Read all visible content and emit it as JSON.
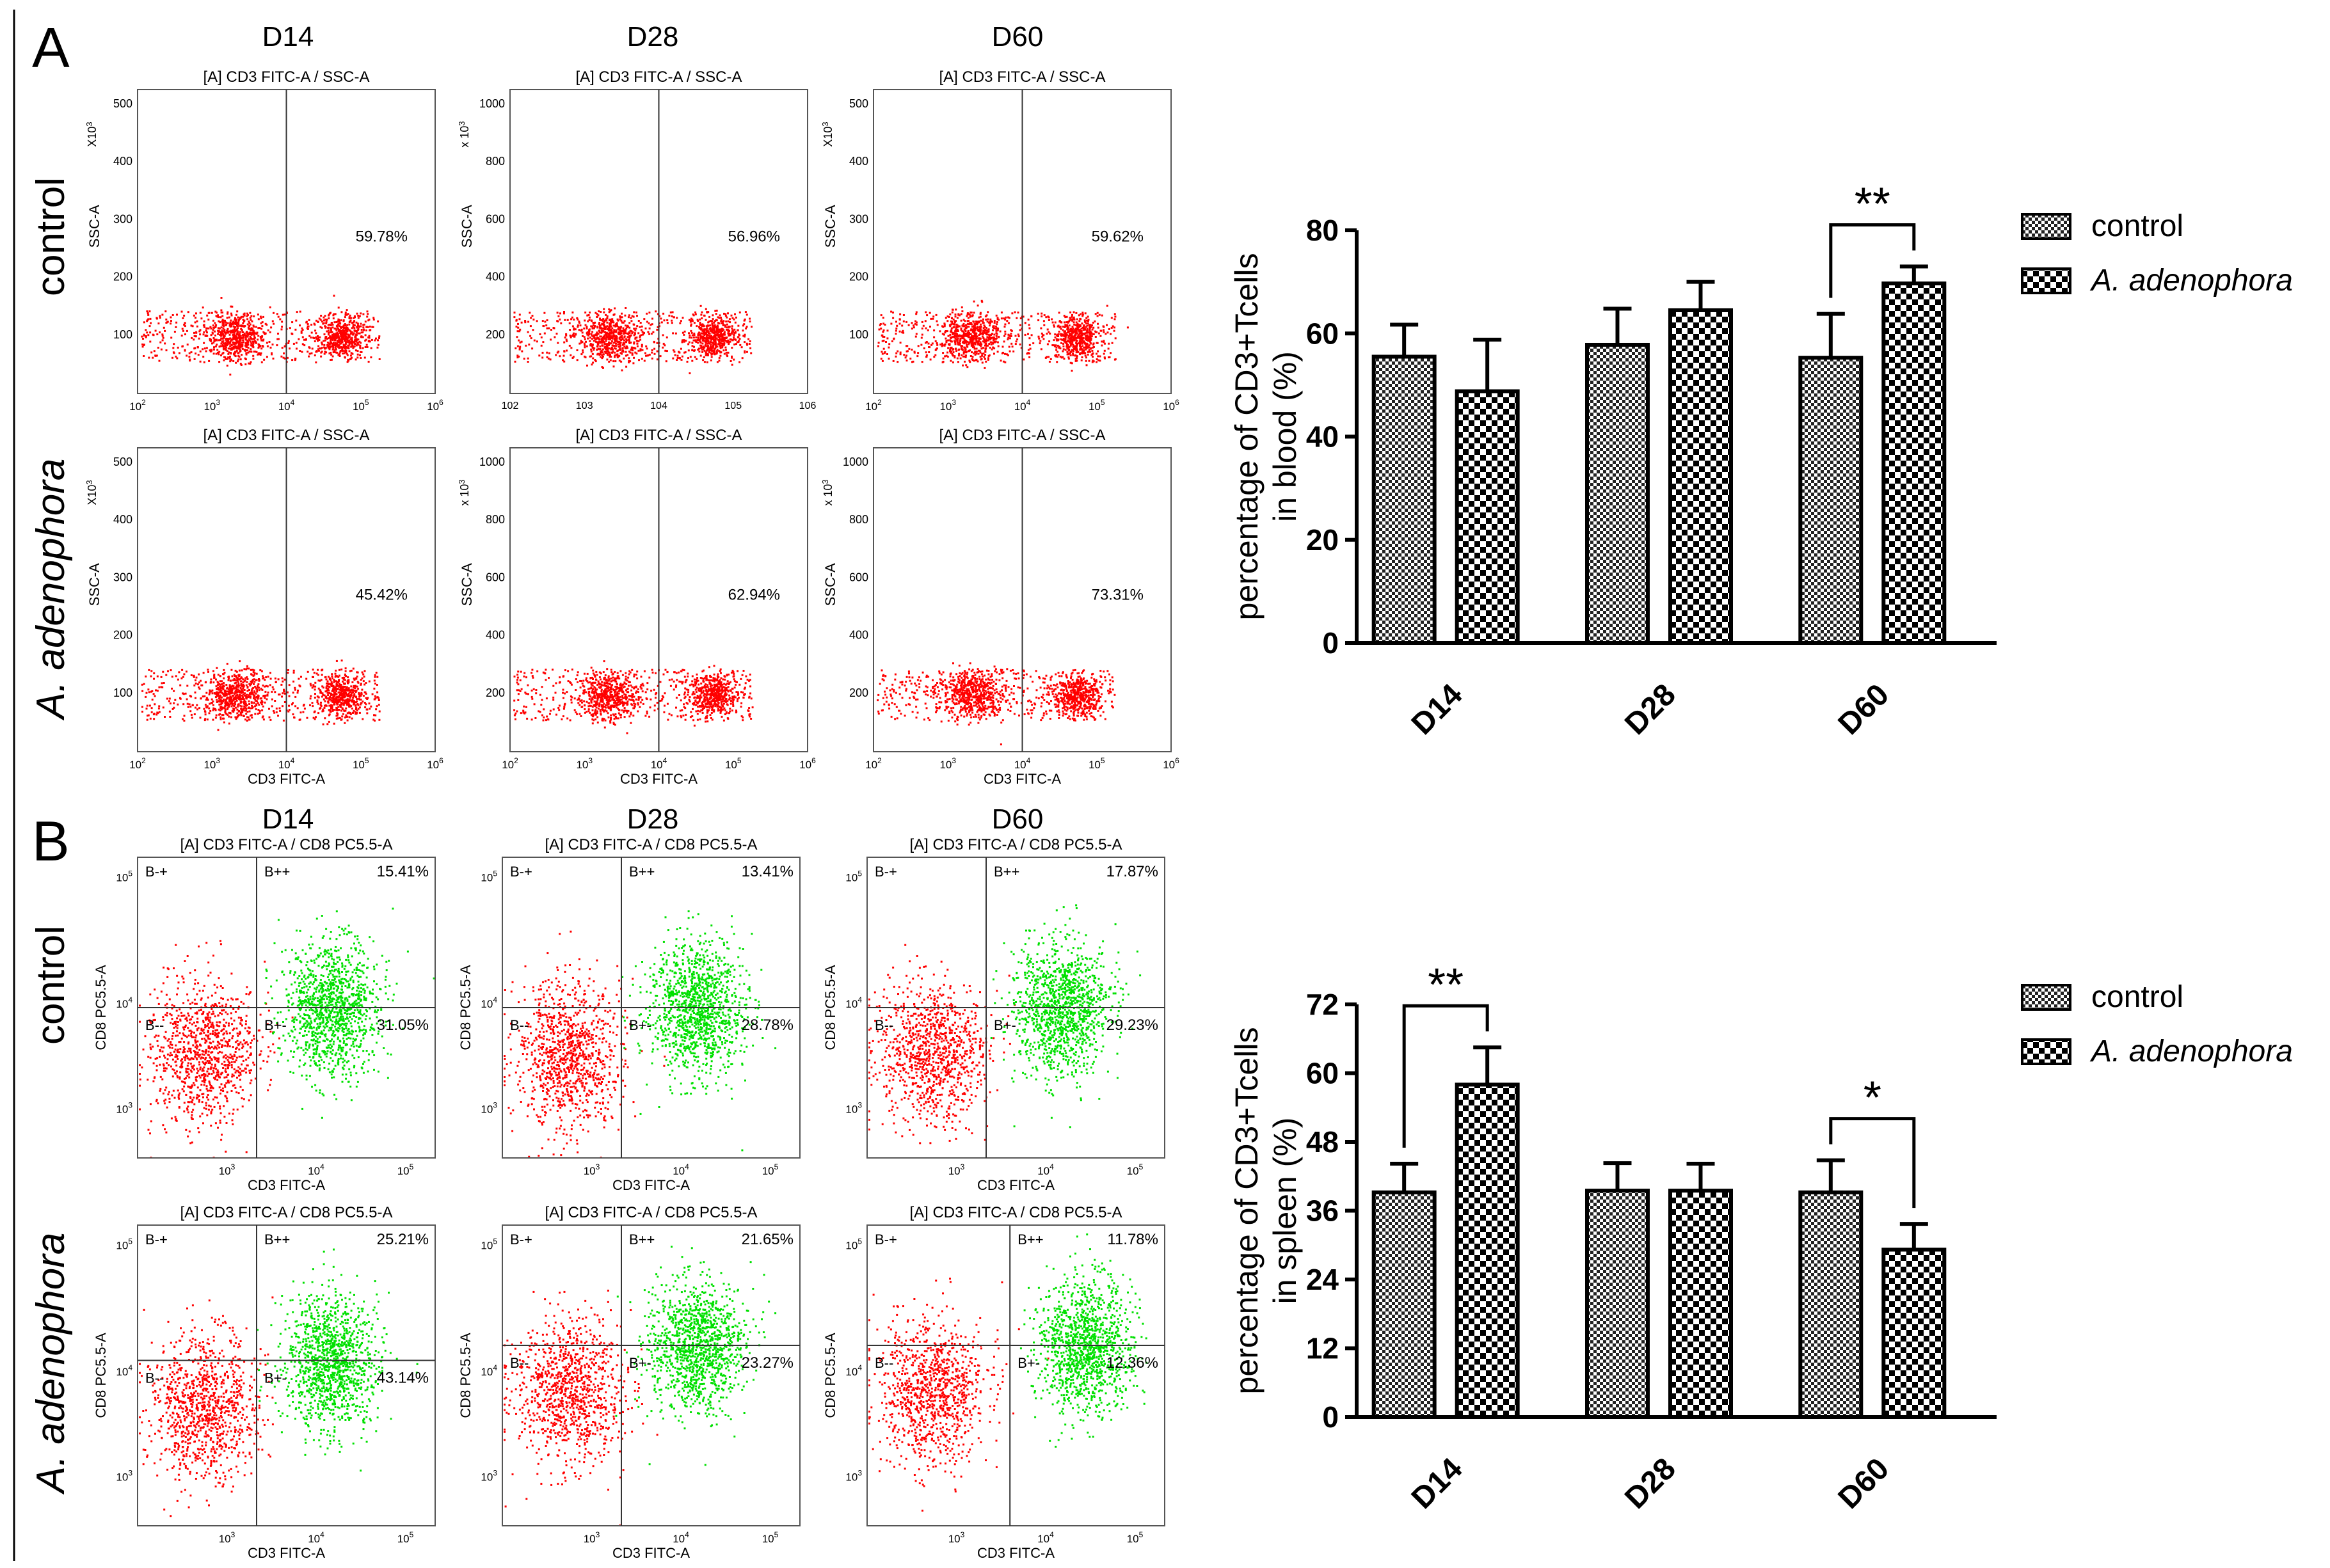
{
  "panels": {
    "A": {
      "letter": "A",
      "columns": [
        "D14",
        "D28",
        "D60"
      ],
      "rows": [
        "control",
        "A. adenophora"
      ],
      "plot_titles": [
        "[A] CD3 FITC-A / SSC-A",
        "[A] CD3 FITC-A / SSC-A",
        "[A] CD3 FITC-A / SSC-A",
        "[A] CD3 FITC-A / SSC-A",
        "[A] CD3 FITC-A / SSC-A",
        "[A] CD3 FITC-A / SSC-A"
      ],
      "percentages": [
        "59.78%",
        "56.96%",
        "59.62%",
        "45.42%",
        "62.94%",
        "73.31%"
      ],
      "ylabel": "SSC-A",
      "xlabel": "CD3 FITC-A",
      "mult": [
        "X10",
        "3",
        "x 10",
        "3"
      ],
      "yticks_small": [
        "500",
        "400",
        "300",
        "200",
        "100"
      ],
      "yticks_large": [
        "1000",
        "800",
        "600",
        "400",
        "200"
      ],
      "xbase": "10",
      "xexp_d14": [
        "2",
        "3",
        "4",
        "5",
        "6"
      ],
      "xticks_d28_top": [
        "102",
        "103",
        "104",
        "105",
        "106"
      ],
      "xexp_d28_bottom": [
        "2",
        "3",
        "4",
        "5",
        "6"
      ]
    },
    "B": {
      "letter": "B",
      "columns": [
        "D14",
        "D28",
        "D60"
      ],
      "rows": [
        "control",
        "A. adenophora"
      ],
      "plot_titles": [
        "[A] CD3 FITC-A / CD8 PC5.5-A",
        "[A] CD3 FITC-A / CD8 PC5.5-A",
        "[A] CD3 FITC-A / CD8 PC5.5-A",
        "[A] CD3 FITC-A / CD8 PC5.5-A",
        "[A] CD3 FITC-A / CD8 PC5.5-A",
        "[A] CD3 FITC-A / CD8 PC5.5-A"
      ],
      "quadrants": [
        "B-+",
        "B++",
        "B--",
        "B+-"
      ],
      "upper_percentages": [
        "15.41%",
        "13.41%",
        "17.87%",
        "25.21%",
        "21.65%",
        "11.78%"
      ],
      "lower_percentages": [
        "31.05%",
        "28.78%",
        "29.23%",
        "43.14%",
        "23.27%",
        "12.36%"
      ],
      "ylabel": "CD8 PC5.5-A",
      "xlabel": "CD3 FITC-A",
      "base": "10",
      "exps": [
        "3",
        "4",
        "5"
      ]
    }
  },
  "chart_data": [
    {
      "type": "bar",
      "title": "",
      "categories": [
        "D14",
        "D28",
        "D60"
      ],
      "series": [
        {
          "name": "control",
          "values": [
            55.5,
            57.8,
            55.3
          ],
          "errors": [
            6.2,
            7.0,
            8.5
          ]
        },
        {
          "name": "A. adenophora",
          "values": [
            48.8,
            64.5,
            69.7
          ],
          "errors": [
            10.0,
            5.5,
            3.3
          ]
        }
      ],
      "ylabel": [
        "percentage of CD3+Tcells",
        "in blood (%)"
      ],
      "ylim": [
        0,
        80
      ],
      "yticks": [
        "0",
        "20",
        "40",
        "60",
        "80"
      ],
      "legend_position": "right",
      "annotations": [
        {
          "between": "D60",
          "label": "**"
        }
      ]
    },
    {
      "type": "bar",
      "title": "",
      "categories": [
        "D14",
        "D28",
        "D60"
      ],
      "series": [
        {
          "name": "control",
          "values": [
            39.2,
            39.5,
            39.2
          ],
          "errors": [
            5.0,
            4.8,
            5.6
          ]
        },
        {
          "name": "A. adenophora",
          "values": [
            58.0,
            39.5,
            29.2
          ],
          "errors": [
            6.5,
            4.7,
            4.5
          ]
        }
      ],
      "ylabel": [
        "percentage of CD3+Tcells",
        "in spleen (%)"
      ],
      "ylim": [
        0,
        72
      ],
      "yticks": [
        "0",
        "12",
        "24",
        "36",
        "48",
        "60",
        "72"
      ],
      "legend_position": "right",
      "annotations": [
        {
          "between": "D14",
          "label": "**"
        },
        {
          "between": "D60",
          "label": "*"
        }
      ]
    }
  ],
  "colors": {
    "red": "#ff0000",
    "green": "#00e000",
    "axis": "#000000"
  }
}
